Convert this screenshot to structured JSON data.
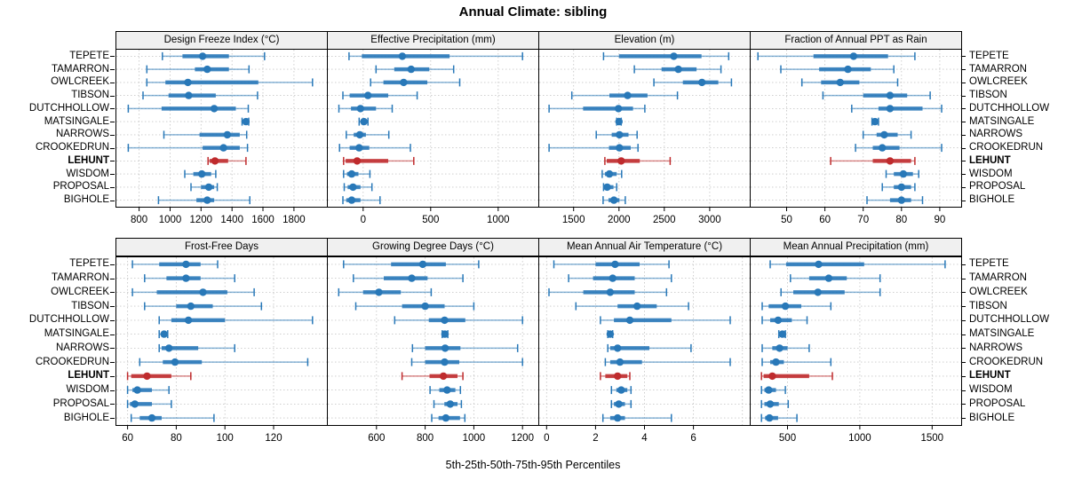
{
  "title": "Annual Climate: sibling",
  "caption": "5th-25th-50th-75th-95th Percentiles",
  "colors": {
    "series": "#2878b8",
    "highlight": "#bf2b2d",
    "grid": "#c9c9c9",
    "strip_bg": "#f0f0f0",
    "border": "#000000"
  },
  "chart_data": {
    "type": "percentile-dotplot-trellis",
    "percentiles": [
      5,
      25,
      50,
      75,
      95
    ],
    "sites": [
      "TEPETE",
      "TAMARRON",
      "OWLCREEK",
      "TIBSON",
      "DUTCHHOLLOW",
      "MATSINGALE",
      "NARROWS",
      "CROOKEDRUN",
      "LEHUNT",
      "WISDOM",
      "PROPOSAL",
      "BIGHOLE"
    ],
    "highlight_site": "LEHUNT",
    "panels": [
      {
        "id": "design-freeze-index",
        "title": "Design Freeze Index (°C)",
        "row": 0,
        "xdomain": [
          653,
          2013
        ],
        "xticks": [
          800,
          1000,
          1200,
          1400,
          1600,
          1800
        ],
        "values": [
          [
            950,
            1080,
            1210,
            1380,
            1610
          ],
          [
            850,
            1160,
            1240,
            1380,
            1510
          ],
          [
            850,
            970,
            1115,
            1570,
            1920
          ],
          [
            825,
            990,
            1120,
            1295,
            1565
          ],
          [
            730,
            945,
            1285,
            1425,
            1505
          ],
          [
            1465,
            1480,
            1490,
            1497,
            1508
          ],
          [
            960,
            1190,
            1370,
            1450,
            1495
          ],
          [
            730,
            1210,
            1345,
            1450,
            1500
          ],
          [
            1245,
            1255,
            1290,
            1375,
            1490
          ],
          [
            1095,
            1150,
            1205,
            1265,
            1295
          ],
          [
            1135,
            1200,
            1250,
            1285,
            1305
          ],
          [
            925,
            1170,
            1240,
            1285,
            1515
          ]
        ]
      },
      {
        "id": "effective-precipitation",
        "title": "Effective Precipitation (mm)",
        "row": 0,
        "xdomain": [
          -262,
          1297
        ],
        "xticks": [
          0,
          500,
          1000
        ],
        "values": [
          [
            -105,
            -10,
            290,
            640,
            1180
          ],
          [
            95,
            230,
            355,
            490,
            670
          ],
          [
            55,
            150,
            300,
            475,
            715
          ],
          [
            -150,
            -100,
            35,
            185,
            400
          ],
          [
            -180,
            -90,
            -20,
            95,
            215
          ],
          [
            -30,
            -8,
            5,
            15,
            35
          ],
          [
            -125,
            -70,
            -25,
            20,
            190
          ],
          [
            -175,
            -100,
            -30,
            45,
            350
          ],
          [
            -145,
            -130,
            -45,
            185,
            375
          ],
          [
            -145,
            -120,
            -85,
            -35,
            50
          ],
          [
            -140,
            -115,
            -75,
            -20,
            65
          ],
          [
            -150,
            -125,
            -85,
            -20,
            125
          ]
        ]
      },
      {
        "id": "elevation",
        "title": "Elevation (m)",
        "row": 0,
        "xdomain": [
          1121,
          3442
        ],
        "xticks": [
          1500,
          2000,
          2500,
          3000
        ],
        "values": [
          [
            1830,
            2000,
            2605,
            2910,
            3210
          ],
          [
            2170,
            2470,
            2655,
            2855,
            3125
          ],
          [
            2385,
            2705,
            2915,
            3095,
            3240
          ],
          [
            1480,
            1895,
            2095,
            2315,
            2645
          ],
          [
            1230,
            1605,
            1995,
            2155,
            2285
          ],
          [
            1975,
            1990,
            2000,
            2012,
            2025
          ],
          [
            1750,
            1920,
            2005,
            2105,
            2200
          ],
          [
            1230,
            1890,
            2005,
            2130,
            2210
          ],
          [
            1845,
            1865,
            2025,
            2230,
            2565
          ],
          [
            1815,
            1845,
            1895,
            1975,
            2030
          ],
          [
            1830,
            1845,
            1870,
            1940,
            1975
          ],
          [
            1825,
            1885,
            1945,
            2005,
            2070
          ]
        ]
      },
      {
        "id": "fraction-ppt-as-rain",
        "title": "Fraction of Annual PPT as Rain",
        "row": 0,
        "xdomain": [
          40.6,
          95.6
        ],
        "xticks": [
          50,
          60,
          70,
          80,
          90
        ],
        "values": [
          [
            42.5,
            57,
            67.5,
            76.5,
            83.5
          ],
          [
            48.5,
            58.5,
            66,
            72,
            78
          ],
          [
            54,
            59,
            64,
            69,
            79
          ],
          [
            59.5,
            70,
            77,
            81.5,
            87.5
          ],
          [
            67,
            74,
            77,
            85.5,
            90.5
          ],
          [
            72.3,
            72.8,
            73.1,
            73.5,
            74
          ],
          [
            70,
            73.5,
            75.5,
            79,
            82.5
          ],
          [
            68,
            72.5,
            75,
            79.5,
            90.5
          ],
          [
            61.5,
            72.5,
            77,
            82.5,
            83.5
          ],
          [
            76,
            78,
            80.5,
            83,
            84.5
          ],
          [
            75,
            78,
            80,
            82.5,
            83.5
          ],
          [
            71,
            77,
            80,
            82.5,
            85.5
          ]
        ]
      },
      {
        "id": "frost-free-days",
        "title": "Frost-Free Days",
        "row": 1,
        "xdomain": [
          55.4,
          141.9
        ],
        "xticks": [
          60,
          80,
          100,
          120
        ],
        "values": [
          [
            62,
            73,
            84,
            90,
            97
          ],
          [
            67,
            76,
            84,
            90,
            104
          ],
          [
            62,
            72,
            91,
            101,
            112
          ],
          [
            67,
            80,
            86,
            95,
            115
          ],
          [
            73,
            78,
            85,
            100,
            136
          ],
          [
            73,
            74.5,
            75,
            75.5,
            76.5
          ],
          [
            73,
            74,
            77,
            89,
            104
          ],
          [
            65,
            74.5,
            79.5,
            90.5,
            134
          ],
          [
            60,
            61.5,
            68,
            78,
            86
          ],
          [
            60,
            62,
            64,
            70,
            77
          ],
          [
            60,
            61,
            63,
            70,
            78
          ],
          [
            61.5,
            65,
            70,
            74,
            95.5
          ]
        ]
      },
      {
        "id": "growing-degree-days",
        "title": "Growing Degree Days (°C)",
        "row": 1,
        "xdomain": [
          400,
          1265
        ],
        "xticks": [
          600,
          800,
          1000,
          1200
        ],
        "values": [
          [
            465,
            660,
            790,
            885,
            1020
          ],
          [
            505,
            630,
            745,
            810,
            955
          ],
          [
            445,
            545,
            610,
            700,
            825
          ],
          [
            515,
            705,
            800,
            880,
            1000
          ],
          [
            675,
            815,
            880,
            965,
            1200
          ],
          [
            870,
            876,
            881,
            887,
            893
          ],
          [
            748,
            800,
            882,
            945,
            1180
          ],
          [
            745,
            800,
            880,
            940,
            1200
          ],
          [
            705,
            818,
            875,
            933,
            955
          ],
          [
            820,
            858,
            890,
            924,
            945
          ],
          [
            836,
            879,
            903,
            933,
            949
          ],
          [
            827,
            855,
            885,
            943,
            963
          ]
        ]
      },
      {
        "id": "mean-annual-air-temperature",
        "title": "Mean Annual Air Temperature (°C)",
        "row": 1,
        "xdomain": [
          -0.3,
          8.3
        ],
        "xticks": [
          0,
          2,
          4,
          6
        ],
        "extra_gridlines": [
          8
        ],
        "values": [
          [
            0.3,
            2.0,
            2.8,
            3.8,
            5.0
          ],
          [
            0.9,
            1.9,
            2.7,
            3.6,
            5.1
          ],
          [
            0.1,
            1.5,
            2.6,
            3.6,
            4.9
          ],
          [
            1.2,
            2.9,
            3.7,
            4.5,
            5.8
          ],
          [
            2.2,
            2.75,
            3.4,
            5.1,
            7.5
          ],
          [
            2.5,
            2.55,
            2.6,
            2.65,
            2.7
          ],
          [
            2.5,
            2.6,
            2.9,
            4.2,
            5.9
          ],
          [
            2.4,
            2.6,
            3.0,
            3.9,
            7.5
          ],
          [
            2.2,
            2.4,
            2.9,
            3.3,
            3.4
          ],
          [
            2.65,
            2.85,
            3.05,
            3.3,
            3.45
          ],
          [
            2.65,
            2.75,
            2.95,
            3.2,
            3.45
          ],
          [
            2.3,
            2.6,
            2.9,
            3.2,
            5.1
          ]
        ]
      },
      {
        "id": "mean-annual-precipitation",
        "title": "Mean Annual Precipitation (mm)",
        "row": 1,
        "xdomain": [
          245,
          1701
        ],
        "xticks": [
          500,
          1000,
          1500
        ],
        "values": [
          [
            380,
            490,
            715,
            1030,
            1590
          ],
          [
            520,
            650,
            785,
            910,
            1140
          ],
          [
            455,
            540,
            710,
            895,
            1140
          ],
          [
            325,
            370,
            485,
            595,
            800
          ],
          [
            325,
            380,
            435,
            530,
            635
          ],
          [
            440,
            455,
            465,
            472,
            485
          ],
          [
            325,
            395,
            445,
            500,
            650
          ],
          [
            325,
            380,
            420,
            475,
            800
          ],
          [
            320,
            335,
            395,
            650,
            810
          ],
          [
            320,
            340,
            370,
            420,
            485
          ],
          [
            320,
            340,
            380,
            440,
            505
          ],
          [
            320,
            345,
            375,
            435,
            565
          ]
        ]
      }
    ]
  }
}
